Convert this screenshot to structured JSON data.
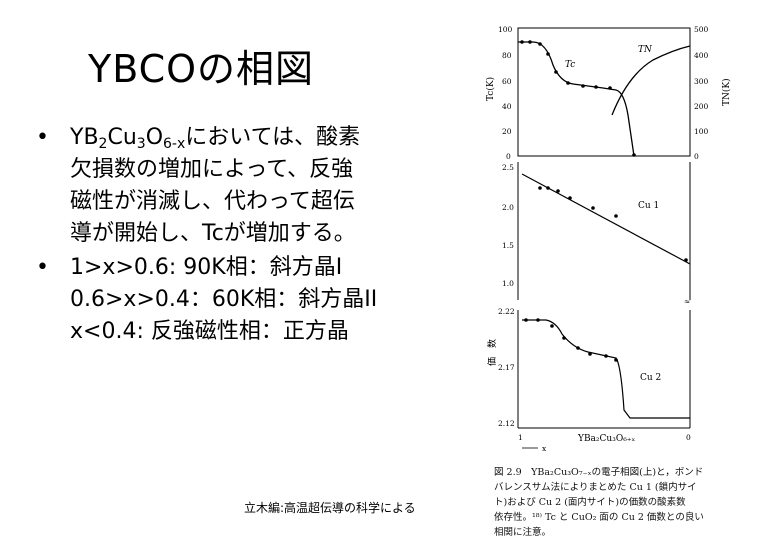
{
  "slide": {
    "title": "YBCOの相図",
    "bullet1": {
      "pre": "YB",
      "sub1": "2",
      "mid1": "Cu",
      "sub2": "3",
      "mid2": "O",
      "sub3": "6-x",
      "line1_rest": "においては、酸素",
      "line2": "欠損数の増加によって、反強",
      "line3": "磁性が消滅し、代わって超伝",
      "line4": "導が開始し、Tcが増加する。"
    },
    "bullet2": {
      "line1": "1>x>0.6: 90K相：斜方晶I",
      "line2": "0.6>x>0.4：60K相：斜方晶II",
      "line3": "x<0.4: 反強磁性相：正方晶"
    },
    "credit": "立木編:高温超伝導の科学による"
  },
  "figure": {
    "top_panel": {
      "left_ticks": [
        "100",
        "80",
        "60",
        "40",
        "20",
        "0"
      ],
      "right_ticks": [
        "500",
        "400",
        "300",
        "200",
        "100",
        "0"
      ],
      "left_label": "Tc(K)",
      "right_label": "TN(K)",
      "tc_label": "Tc",
      "tn_label": "TN"
    },
    "middle_panel": {
      "ticks": [
        "2.5",
        "2.0",
        "1.5",
        "1.0"
      ],
      "label": "Cu 1"
    },
    "bottom_panel": {
      "ticks": [
        "2.22",
        "2.17",
        "2.12"
      ],
      "label": "Cu 2",
      "ylabel": "価　数"
    },
    "x_ticks": [
      "1",
      "0"
    ],
    "x_label": "YBa₂Cu₃O₆₊ₓ",
    "x_arrow_label": "x",
    "caption": {
      "line1": "図 2.9　YBa₂Cu₃O₇₋ₓの電子相図(上)と，ボンド",
      "line2": "バレンスサム法によりまとめた Cu 1 (鎖内サイ",
      "line3": "ト)および Cu 2 (面内サイト)の価数の酸素数",
      "line4": "依存性。¹⁸⁾ Tc と CuO₂ 面の Cu 2 価数との良い",
      "line5": "相関に注意。"
    }
  }
}
